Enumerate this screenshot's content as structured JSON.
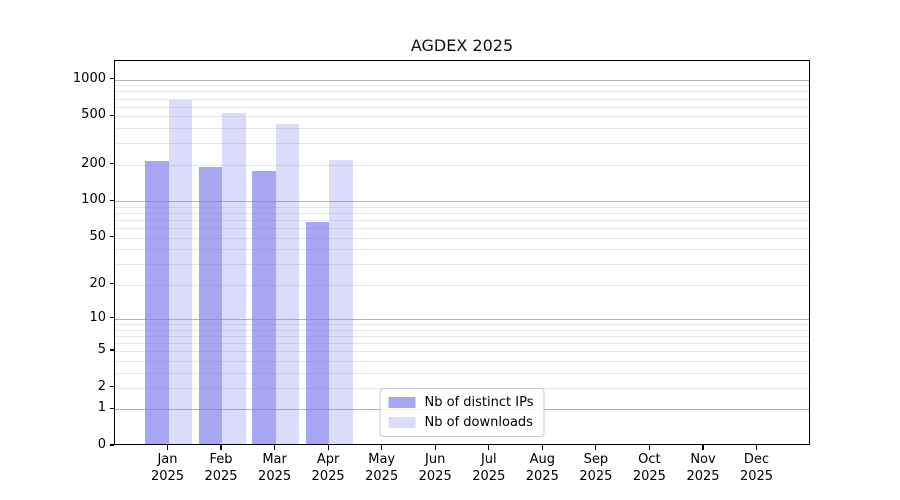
{
  "chart_data": {
    "type": "bar",
    "title": "AGDEX 2025",
    "categories": [
      "Jan",
      "Feb",
      "Mar",
      "Apr",
      "May",
      "Jun",
      "Jul",
      "Aug",
      "Sep",
      "Oct",
      "Nov",
      "Dec"
    ],
    "year_label": "2025",
    "series": [
      {
        "name": "Nb of distinct IPs",
        "color": "rgba(124,124,238,0.68)",
        "values": [
          205,
          185,
          170,
          65,
          0,
          0,
          0,
          0,
          0,
          0,
          0,
          0
        ]
      },
      {
        "name": "Nb of downloads",
        "color": "rgba(124,124,238,0.28)",
        "values": [
          660,
          510,
          415,
          210,
          0,
          0,
          0,
          0,
          0,
          0,
          0,
          0
        ]
      }
    ],
    "yscale": "log10(value+1)",
    "ylim": [
      0,
      1420
    ],
    "y_tick_values": [
      0,
      1,
      2,
      5,
      10,
      20,
      50,
      100,
      200,
      500,
      1000
    ],
    "y_major_gridlines": [
      1,
      10,
      100,
      1000
    ],
    "y_minor_gridlines": [
      2,
      3,
      4,
      5,
      6,
      7,
      8,
      9,
      20,
      30,
      40,
      50,
      60,
      70,
      80,
      90,
      200,
      300,
      400,
      500,
      600,
      700,
      800,
      900
    ],
    "xlabel": "",
    "ylabel": "",
    "grid": "horizontal",
    "legend_position": "lower center",
    "colors": {
      "background": "#ffffff",
      "spine": "#000000",
      "major_grid": "#b4b4b4",
      "minor_grid": "#e7e7e7",
      "tick_text": "#000000"
    }
  }
}
